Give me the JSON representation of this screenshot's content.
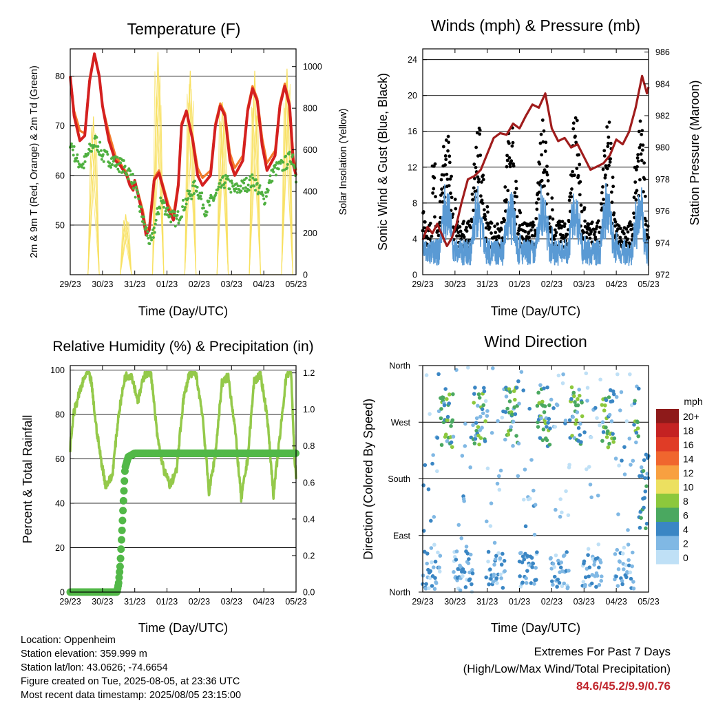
{
  "colors": {
    "temp_2m": "#d42020",
    "temp_9m": "#f47a2a",
    "dewpoint": "#4fb040",
    "solar": "#f8e060",
    "gust": "#000000",
    "wind": "#5a9ad4",
    "pressure": "#a01c1c",
    "rh": "#94c94a",
    "precip": "#52b848"
  },
  "x_ticks": [
    "29/23",
    "30/23",
    "31/23",
    "01/23",
    "02/23",
    "03/23",
    "04/23",
    "05/23"
  ],
  "charts": {
    "temperature": {
      "title": "Temperature (F)",
      "xlabel": "Time (Day/UTC)",
      "ylabel": "2m & 9m T (Red, Orange) & 2m Td (Green)",
      "ylabel_right": "Solar Insolation (Yellow)",
      "yticks": [
        "50",
        "60",
        "70",
        "80"
      ],
      "yticks_right": [
        "0",
        "200",
        "400",
        "600",
        "800",
        "1000"
      ]
    },
    "winds": {
      "title": "Winds (mph) & Pressure (mb)",
      "xlabel": "Time (Day/UTC)",
      "ylabel": "Sonic Wind & Gust (Blue, Black)",
      "ylabel_right": "Station Pressure (Maroon)",
      "yticks": [
        "0",
        "4",
        "8",
        "12",
        "16",
        "20",
        "24"
      ],
      "yticks_right": [
        "972",
        "974",
        "976",
        "978",
        "980",
        "982",
        "984",
        "986"
      ]
    },
    "humidity": {
      "title": "Relative Humidity (%) & Precipitation (in)",
      "xlabel": "Time (Day/UTC)",
      "ylabel": "Percent & Total Rainfall",
      "yticks": [
        "0",
        "20",
        "40",
        "60",
        "80",
        "100"
      ],
      "yticks_right": [
        "0.0",
        "0.2",
        "0.4",
        "0.6",
        "0.8",
        "1.0",
        "1.2"
      ]
    },
    "direction": {
      "title": "Wind Direction",
      "xlabel": "Time (Day/UTC)",
      "ylabel": "Direction (Colored By Speed)",
      "yticks": [
        "North",
        "East",
        "South",
        "West",
        "North"
      ],
      "legend_title": "mph",
      "legend_labels": [
        "20+",
        "18",
        "16",
        "14",
        "12",
        "10",
        "8",
        "6",
        "4",
        "2",
        "0"
      ],
      "legend_colors": [
        "#8e1a1a",
        "#c42222",
        "#e03c26",
        "#f0662e",
        "#f8a040",
        "#ece060",
        "#8cc83c",
        "#4aa860",
        "#3a86c4",
        "#80b8e4",
        "#bfe0f6"
      ]
    }
  },
  "info": {
    "location": "Location: Oppenheim",
    "elevation": "Station elevation: 359.999 m",
    "latlon": "Station lat/lon: 43.0626; -74.6654",
    "created": "Figure created on Tue, 2025-08-05, at 23:36 UTC",
    "timestamp": "Most recent data timestamp: 2025/08/05 23:15:00"
  },
  "extremes": {
    "title": "Extremes For Past 7 Days",
    "subtitle": "(High/Low/Max Wind/Total Precipitation)",
    "values": "84.6/45.2/9.9/0.76"
  },
  "chart_data": [
    {
      "type": "line",
      "title": "Temperature (F)",
      "xlabel": "Time (Day/UTC)",
      "ylabel": "2m & 9m T (Red, Orange) & 2m Td (Green)",
      "ylabel_right": "Solar Insolation (Yellow)",
      "x_ticks": [
        "29/23",
        "30/23",
        "31/23",
        "01/23",
        "02/23",
        "03/23",
        "04/23",
        "05/23"
      ],
      "xlim": [
        0,
        7
      ],
      "ylim": [
        40,
        85.5
      ],
      "ylim_right": [
        0,
        1085
      ],
      "grid": "horizontal",
      "series": [
        {
          "axis": "left",
          "x": [
            0,
            0.12,
            0.3,
            0.45,
            0.6,
            0.75,
            0.9,
            1.0,
            1.2,
            1.4,
            1.55,
            1.75,
            1.85,
            1.95,
            2.0,
            2.25,
            2.35,
            2.45,
            2.6,
            2.75,
            2.9,
            3.05,
            3.2,
            3.35,
            3.45,
            3.6,
            3.8,
            3.95,
            4.1,
            4.35,
            4.5,
            4.65,
            4.8,
            4.95,
            5.1,
            5.35,
            5.5,
            5.65,
            5.8,
            5.95,
            6.1,
            6.35,
            6.5,
            6.65,
            6.8,
            6.92,
            7.0
          ],
          "y": [
            80,
            72,
            67,
            68,
            79,
            84.5,
            80,
            74,
            67,
            63,
            62,
            60,
            58,
            57,
            59,
            52,
            48,
            49,
            59,
            60.5,
            57,
            53,
            51,
            58,
            70,
            73,
            67,
            60,
            58,
            60,
            70,
            74,
            72,
            63,
            60,
            63,
            73,
            77.5,
            75,
            66,
            61,
            64,
            74,
            78,
            74,
            62,
            60
          ]
        },
        {
          "axis": "left",
          "x": [
            0,
            0.12,
            0.3,
            0.45,
            0.6,
            0.75,
            0.9,
            1.0,
            1.2,
            1.4,
            1.55,
            1.75,
            1.85,
            1.95,
            2.0,
            2.25,
            2.35,
            2.45,
            2.6,
            2.75,
            2.9,
            3.05,
            3.2,
            3.35,
            3.45,
            3.6,
            3.8,
            3.95,
            4.1,
            4.35,
            4.5,
            4.65,
            4.8,
            4.95,
            5.1,
            5.35,
            5.5,
            5.65,
            5.8,
            5.95,
            6.1,
            6.35,
            6.5,
            6.65,
            6.8,
            6.92,
            7.0
          ],
          "y": [
            80,
            73,
            69,
            68.5,
            79.5,
            84.5,
            80,
            74,
            68.5,
            64,
            62.5,
            60.5,
            58.5,
            57.5,
            59,
            53,
            49,
            49.5,
            59.5,
            61,
            57.5,
            54,
            52,
            58.5,
            70.5,
            73,
            67.5,
            61.5,
            59.5,
            61,
            70.5,
            74.5,
            72.5,
            64.5,
            61.5,
            64,
            73.5,
            78,
            75.5,
            67.5,
            62.5,
            65,
            74.5,
            78.5,
            74.5,
            63.5,
            61
          ]
        },
        {
          "axis": "left",
          "x": [
            0,
            0.2,
            0.4,
            0.6,
            0.8,
            1.0,
            1.3,
            1.6,
            1.9,
            2.1,
            2.3,
            2.5,
            2.8,
            3.1,
            3.3,
            3.6,
            3.9,
            4.2,
            4.5,
            4.8,
            5.1,
            5.4,
            5.7,
            6.0,
            6.3,
            6.6,
            6.9,
            7.0
          ],
          "y": [
            67,
            63,
            62,
            65,
            67,
            64,
            63,
            62,
            60,
            55,
            50,
            46,
            55,
            52,
            51,
            55,
            58,
            53,
            56,
            59,
            57,
            58,
            59,
            55,
            61,
            62,
            64,
            60
          ]
        },
        {
          "axis": "right",
          "x": [
            0.55,
            0.72,
            0.9,
            1.55,
            1.72,
            1.9,
            2.55,
            2.72,
            2.9,
            3.55,
            3.72,
            3.9,
            4.55,
            4.72,
            4.9,
            5.55,
            5.72,
            5.9,
            6.55,
            6.72,
            6.9
          ],
          "y": [
            0,
            760,
            0,
            0,
            290,
            0,
            0,
            1070,
            0,
            0,
            980,
            0,
            0,
            830,
            0,
            0,
            980,
            0,
            0,
            990,
            0
          ]
        }
      ]
    },
    {
      "type": "scatter",
      "title": "Winds (mph) & Pressure (mb)",
      "xlabel": "Time (Day/UTC)",
      "ylabel": "Sonic Wind & Gust (Blue, Black)",
      "ylabel_right": "Station Pressure (Maroon)",
      "x_ticks": [
        "29/23",
        "30/23",
        "31/23",
        "01/23",
        "02/23",
        "03/23",
        "04/23",
        "05/23"
      ],
      "xlim": [
        0,
        7
      ],
      "ylim": [
        0,
        25.2
      ],
      "ylim_right": [
        972,
        986.2
      ],
      "grid": "horizontal",
      "series": [
        {
          "axis": "right",
          "type": "line",
          "x": [
            0,
            0.15,
            0.3,
            0.45,
            0.6,
            0.75,
            0.9,
            1.05,
            1.2,
            1.4,
            1.6,
            1.8,
            2.0,
            2.2,
            2.4,
            2.6,
            2.8,
            3.0,
            3.2,
            3.4,
            3.6,
            3.8,
            4.0,
            4.2,
            4.4,
            4.6,
            4.8,
            5.0,
            5.2,
            5.4,
            5.6,
            5.8,
            6.0,
            6.2,
            6.4,
            6.6,
            6.8,
            6.95,
            7.0
          ],
          "y": [
            974.2,
            975,
            974.6,
            975.2,
            974.5,
            973.8,
            974.3,
            975.2,
            976.5,
            978,
            978.2,
            978.6,
            979.6,
            980.6,
            980.9,
            980.8,
            981.5,
            981.2,
            982,
            982.7,
            982.5,
            983.4,
            981.2,
            980.4,
            980.6,
            980,
            980.2,
            979.4,
            978.6,
            978.8,
            979,
            979.5,
            980.5,
            980.2,
            981,
            982.5,
            984.5,
            983.4,
            983.8
          ]
        }
      ]
    },
    {
      "type": "line",
      "title": "Relative Humidity (%) & Precipitation (in)",
      "xlabel": "Time (Day/UTC)",
      "ylabel": "Percent & Total Rainfall",
      "x_ticks": [
        "29/23",
        "30/23",
        "31/23",
        "01/23",
        "02/23",
        "03/23",
        "04/23",
        "05/23"
      ],
      "xlim": [
        0,
        7
      ],
      "ylim": [
        0,
        102
      ],
      "ylim_right": [
        0,
        1.24
      ],
      "grid": "horizontal",
      "series": [
        {
          "axis": "left",
          "x": [
            0,
            0.1,
            0.25,
            0.45,
            0.55,
            0.65,
            0.8,
            0.95,
            1.1,
            1.3,
            1.5,
            1.7,
            1.9,
            2.1,
            2.3,
            2.5,
            2.7,
            2.9,
            3.1,
            3.3,
            3.5,
            3.7,
            3.9,
            4.1,
            4.3,
            4.5,
            4.7,
            4.9,
            5.1,
            5.3,
            5.5,
            5.7,
            5.9,
            6.1,
            6.3,
            6.5,
            6.7,
            6.85,
            6.95,
            7.0
          ],
          "y": [
            65,
            80,
            88,
            97,
            99,
            95,
            75,
            60,
            48,
            52,
            80,
            97,
            98,
            86,
            98,
            99,
            70,
            55,
            48,
            55,
            86,
            99,
            98,
            80,
            45,
            62,
            94,
            97,
            75,
            42,
            60,
            95,
            98,
            80,
            44,
            70,
            98,
            99,
            60,
            52
          ]
        },
        {
          "axis": "right",
          "x": [
            0,
            1.45,
            1.5,
            1.55,
            1.6,
            1.65,
            1.7,
            1.8,
            2.0,
            7.0
          ],
          "y": [
            0,
            0,
            0.05,
            0.15,
            0.32,
            0.5,
            0.68,
            0.74,
            0.76,
            0.76
          ]
        }
      ]
    },
    {
      "type": "scatter",
      "title": "Wind Direction",
      "xlabel": "Time (Day/UTC)",
      "ylabel": "Direction (Colored By Speed)",
      "x_ticks": [
        "29/23",
        "30/23",
        "31/23",
        "01/23",
        "02/23",
        "03/23",
        "04/23",
        "05/23"
      ],
      "y_categories": [
        "North",
        "East",
        "South",
        "West",
        "North"
      ],
      "xlim": [
        0,
        7
      ],
      "ylim": [
        0,
        360
      ],
      "legend": "right",
      "legend_title": "mph",
      "legend_labels": [
        "20+",
        "18",
        "16",
        "14",
        "12",
        "10",
        "8",
        "6",
        "4",
        "2",
        "0"
      ]
    }
  ]
}
